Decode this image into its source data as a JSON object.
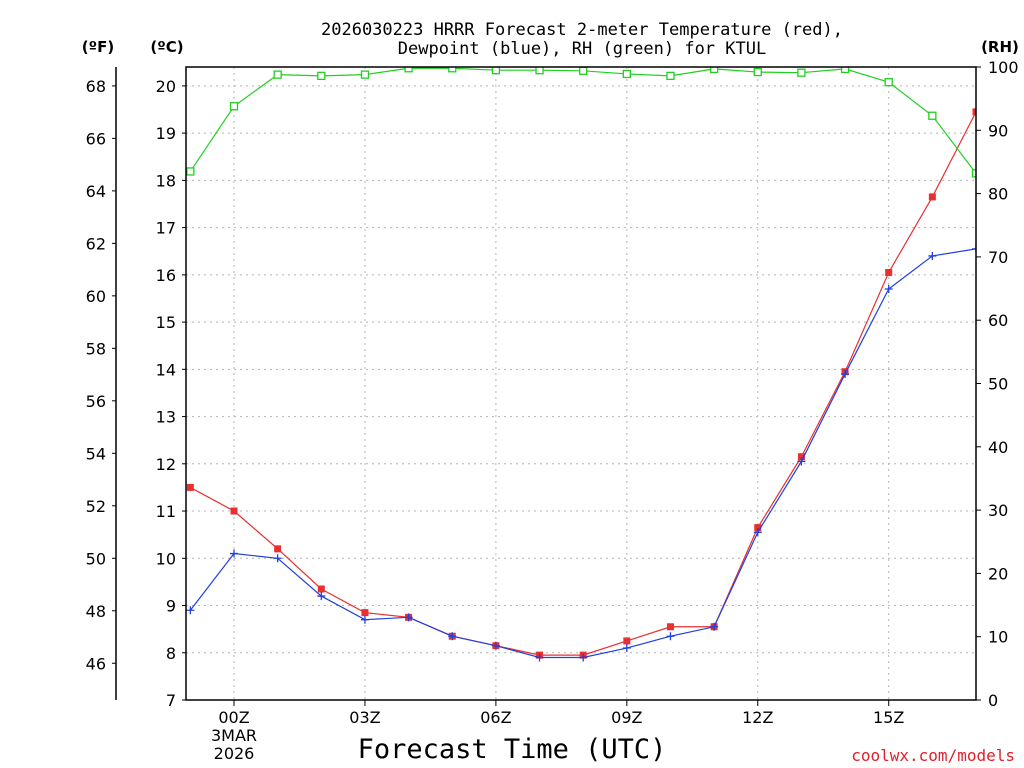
{
  "chart_data": {
    "type": "line",
    "title": "2026030223 HRRR Forecast 2-meter Temperature (red),",
    "subtitle": "Dewpoint (blue), RH (green) for KTUL",
    "xlabel": "Forecast Time (UTC)",
    "credit": "coolwx.com/models",
    "units": {
      "fahrenheit": "(ºF)",
      "celsius": "(ºC)",
      "rh": "(RH)"
    },
    "x_hours": [
      23,
      24,
      25,
      26,
      27,
      28,
      29,
      30,
      31,
      32,
      33,
      34,
      35,
      36,
      37,
      38,
      39,
      40,
      41
    ],
    "xlim": [
      22.9,
      41
    ],
    "xticks": [
      {
        "hour": 24,
        "label": "00Z",
        "date": "3MAR",
        "year": "2026"
      },
      {
        "hour": 27,
        "label": "03Z"
      },
      {
        "hour": 30,
        "label": "06Z"
      },
      {
        "hour": 33,
        "label": "09Z"
      },
      {
        "hour": 36,
        "label": "12Z"
      },
      {
        "hour": 39,
        "label": "15Z"
      }
    ],
    "y_celsius": {
      "ylim": [
        7,
        20.4
      ],
      "ticks": [
        7,
        8,
        9,
        10,
        11,
        12,
        13,
        14,
        15,
        16,
        17,
        18,
        19,
        20
      ]
    },
    "y_fahrenheit": {
      "ticks": [
        46,
        48,
        50,
        52,
        54,
        56,
        58,
        60,
        62,
        64,
        66,
        68
      ]
    },
    "y_rh": {
      "ylim": [
        0,
        100
      ],
      "ticks": [
        0,
        10,
        20,
        30,
        40,
        50,
        60,
        70,
        80,
        90,
        100
      ]
    },
    "series": [
      {
        "name": "Temperature",
        "axis": "celsius",
        "color": "#e83030",
        "marker": "filled-square",
        "values": [
          11.5,
          11.0,
          10.2,
          9.35,
          8.85,
          8.75,
          8.35,
          8.15,
          7.95,
          7.95,
          8.25,
          8.55,
          8.55,
          10.65,
          12.15,
          13.95,
          16.05,
          17.65,
          19.45
        ]
      },
      {
        "name": "Dewpoint",
        "axis": "celsius",
        "color": "#2040e0",
        "marker": "plus",
        "values": [
          8.9,
          10.1,
          10.0,
          9.2,
          8.7,
          8.75,
          8.35,
          8.15,
          7.9,
          7.9,
          8.1,
          8.35,
          8.55,
          10.55,
          12.05,
          13.9,
          15.7,
          16.4,
          16.55
        ]
      },
      {
        "name": "RH",
        "axis": "rh",
        "color": "#20d020",
        "marker": "open-square",
        "values": [
          83.5,
          93.8,
          98.8,
          98.6,
          98.8,
          99.8,
          99.8,
          99.5,
          99.5,
          99.4,
          98.9,
          98.6,
          99.7,
          99.2,
          99.1,
          99.7,
          97.6,
          92.3,
          83.2
        ]
      }
    ]
  }
}
